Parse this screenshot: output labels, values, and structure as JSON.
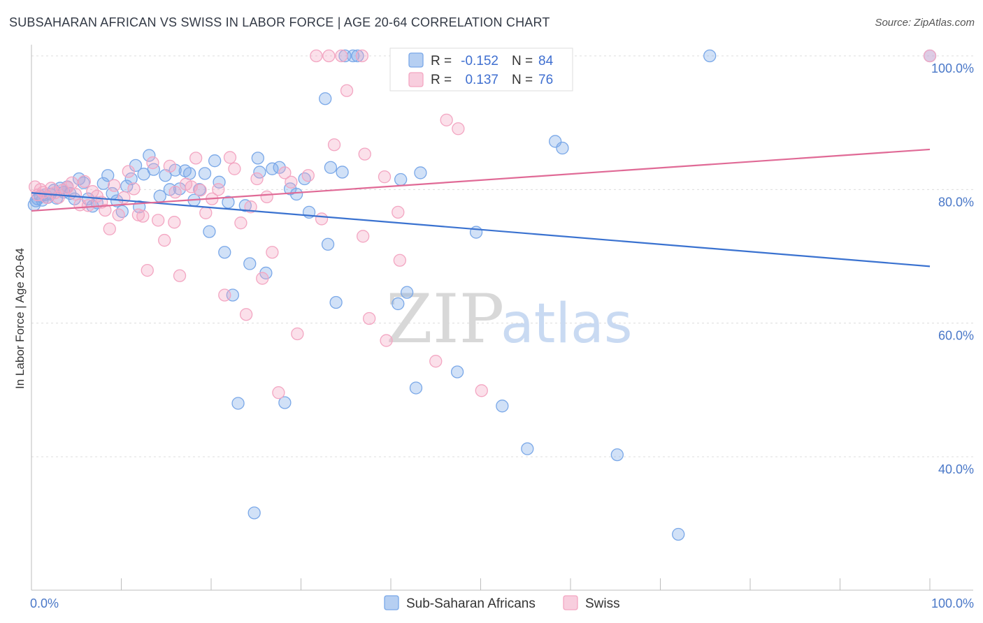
{
  "title": "SUBSAHARAN AFRICAN VS SWISS IN LABOR FORCE | AGE 20-64 CORRELATION CHART",
  "source": "Source: ZipAtlas.com",
  "watermark": {
    "zip": "ZIP",
    "atlas": "atlas"
  },
  "chart_data": {
    "type": "scatter",
    "ylabel": "In Labor Force | Age 20-64",
    "xlim": [
      0,
      100
    ],
    "ylim": [
      20,
      102
    ],
    "x_ticks": [
      0,
      100
    ],
    "x_tick_labels": [
      "0.0%",
      "100.0%"
    ],
    "y_ticks": [
      40,
      60,
      80,
      100
    ],
    "y_tick_labels": [
      "40.0%",
      "60.0%",
      "80.0%",
      "100.0%"
    ],
    "grid": true,
    "legend_placement": "top-center",
    "series": [
      {
        "name": "Sub-Saharan Africans",
        "color": "#7aa8e8",
        "line_color": "#3a72d0",
        "R": "-0.152",
        "N": "84",
        "trend": [
          [
            0,
            79.5
          ],
          [
            100,
            68.5
          ]
        ],
        "points": [
          [
            0.3,
            77.7
          ],
          [
            0.5,
            78.3
          ],
          [
            0.7,
            78.6
          ],
          [
            1.0,
            79.0
          ],
          [
            1.2,
            78.4
          ],
          [
            1.5,
            79.2
          ],
          [
            1.8,
            78.8
          ],
          [
            2.1,
            79.3
          ],
          [
            2.5,
            79.9
          ],
          [
            2.8,
            78.7
          ],
          [
            3.2,
            80.2
          ],
          [
            3.6,
            79.6
          ],
          [
            4.0,
            80.4
          ],
          [
            4.3,
            79.4
          ],
          [
            4.8,
            78.6
          ],
          [
            5.3,
            81.6
          ],
          [
            5.8,
            81.0
          ],
          [
            6.3,
            78.6
          ],
          [
            6.8,
            77.5
          ],
          [
            7.3,
            78.0
          ],
          [
            8.0,
            80.9
          ],
          [
            8.5,
            82.1
          ],
          [
            9.0,
            79.4
          ],
          [
            9.5,
            78.3
          ],
          [
            10.1,
            76.7
          ],
          [
            10.6,
            80.5
          ],
          [
            11.1,
            81.6
          ],
          [
            11.6,
            83.6
          ],
          [
            12.0,
            77.4
          ],
          [
            12.5,
            82.3
          ],
          [
            13.1,
            85.1
          ],
          [
            13.6,
            83.0
          ],
          [
            14.3,
            79.0
          ],
          [
            14.9,
            82.1
          ],
          [
            15.4,
            80.0
          ],
          [
            16.0,
            82.9
          ],
          [
            16.5,
            80.1
          ],
          [
            17.1,
            82.8
          ],
          [
            17.6,
            82.4
          ],
          [
            18.1,
            78.4
          ],
          [
            18.7,
            80.0
          ],
          [
            19.3,
            82.4
          ],
          [
            19.8,
            73.7
          ],
          [
            20.4,
            84.3
          ],
          [
            20.9,
            81.1
          ],
          [
            21.5,
            70.6
          ],
          [
            21.9,
            78.1
          ],
          [
            22.4,
            64.2
          ],
          [
            23.0,
            48.0
          ],
          [
            23.8,
            77.6
          ],
          [
            24.3,
            68.9
          ],
          [
            24.8,
            31.6
          ],
          [
            25.2,
            84.7
          ],
          [
            25.4,
            82.6
          ],
          [
            26.1,
            67.5
          ],
          [
            26.8,
            83.1
          ],
          [
            27.6,
            83.3
          ],
          [
            28.2,
            48.1
          ],
          [
            28.8,
            80.1
          ],
          [
            29.5,
            79.3
          ],
          [
            30.4,
            81.6
          ],
          [
            30.9,
            76.6
          ],
          [
            32.7,
            93.6
          ],
          [
            33.0,
            71.8
          ],
          [
            33.3,
            83.3
          ],
          [
            33.9,
            63.1
          ],
          [
            34.6,
            82.6
          ],
          [
            34.9,
            100.0
          ],
          [
            35.8,
            100.0
          ],
          [
            36.3,
            100.0
          ],
          [
            40.8,
            62.9
          ],
          [
            41.1,
            81.5
          ],
          [
            41.8,
            64.6
          ],
          [
            42.8,
            50.3
          ],
          [
            43.3,
            82.5
          ],
          [
            47.4,
            52.7
          ],
          [
            49.5,
            73.6
          ],
          [
            52.4,
            47.6
          ],
          [
            55.2,
            41.2
          ],
          [
            58.3,
            87.2
          ],
          [
            59.1,
            86.2
          ],
          [
            65.2,
            40.3
          ],
          [
            72.0,
            28.4
          ],
          [
            75.5,
            100.0
          ],
          [
            100.0,
            100.0
          ]
        ]
      },
      {
        "name": "Swiss",
        "color": "#f3a6c2",
        "line_color": "#e06a96",
        "R": "0.137",
        "N": "76",
        "trend": [
          [
            0,
            76.8
          ],
          [
            100,
            86.0
          ]
        ],
        "points": [
          [
            0.4,
            80.4
          ],
          [
            0.7,
            79.2
          ],
          [
            1.0,
            80.0
          ],
          [
            1.3,
            79.6
          ],
          [
            1.7,
            78.8
          ],
          [
            2.2,
            80.2
          ],
          [
            2.6,
            79.5
          ],
          [
            3.0,
            78.8
          ],
          [
            3.5,
            79.9
          ],
          [
            4.0,
            80.3
          ],
          [
            4.5,
            81.0
          ],
          [
            4.9,
            79.3
          ],
          [
            5.4,
            77.7
          ],
          [
            5.9,
            81.2
          ],
          [
            6.3,
            77.6
          ],
          [
            6.8,
            79.7
          ],
          [
            7.3,
            79.0
          ],
          [
            7.8,
            78.1
          ],
          [
            8.2,
            76.9
          ],
          [
            8.7,
            74.1
          ],
          [
            9.2,
            80.6
          ],
          [
            9.7,
            76.2
          ],
          [
            10.3,
            78.8
          ],
          [
            10.8,
            82.7
          ],
          [
            11.4,
            80.1
          ],
          [
            11.9,
            76.2
          ],
          [
            12.4,
            76.0
          ],
          [
            12.9,
            67.9
          ],
          [
            13.5,
            84.0
          ],
          [
            14.1,
            75.4
          ],
          [
            14.8,
            72.4
          ],
          [
            15.4,
            83.5
          ],
          [
            15.9,
            75.1
          ],
          [
            16.5,
            67.1
          ],
          [
            17.2,
            80.8
          ],
          [
            17.8,
            80.4
          ],
          [
            18.3,
            84.7
          ],
          [
            18.8,
            79.9
          ],
          [
            19.4,
            76.5
          ],
          [
            20.1,
            78.6
          ],
          [
            20.8,
            80.0
          ],
          [
            21.5,
            64.2
          ],
          [
            22.1,
            84.8
          ],
          [
            22.6,
            83.1
          ],
          [
            23.3,
            75.0
          ],
          [
            23.9,
            61.3
          ],
          [
            24.4,
            77.4
          ],
          [
            25.1,
            81.6
          ],
          [
            25.7,
            66.7
          ],
          [
            26.2,
            78.9
          ],
          [
            26.8,
            70.6
          ],
          [
            27.5,
            49.6
          ],
          [
            28.2,
            82.5
          ],
          [
            28.9,
            81.1
          ],
          [
            29.6,
            58.4
          ],
          [
            30.8,
            82.1
          ],
          [
            31.7,
            100.0
          ],
          [
            32.3,
            75.6
          ],
          [
            33.1,
            100.0
          ],
          [
            33.7,
            86.7
          ],
          [
            34.5,
            100.0
          ],
          [
            35.1,
            94.8
          ],
          [
            36.8,
            100.0
          ],
          [
            37.1,
            85.3
          ],
          [
            37.6,
            60.7
          ],
          [
            39.3,
            81.9
          ],
          [
            39.5,
            57.4
          ],
          [
            40.8,
            76.6
          ],
          [
            41.0,
            69.4
          ],
          [
            45.0,
            54.3
          ],
          [
            46.2,
            90.4
          ],
          [
            47.5,
            89.1
          ],
          [
            50.1,
            49.9
          ],
          [
            100.0,
            100.0
          ],
          [
            36.9,
            73.0
          ],
          [
            16.0,
            79.6
          ]
        ]
      }
    ]
  }
}
